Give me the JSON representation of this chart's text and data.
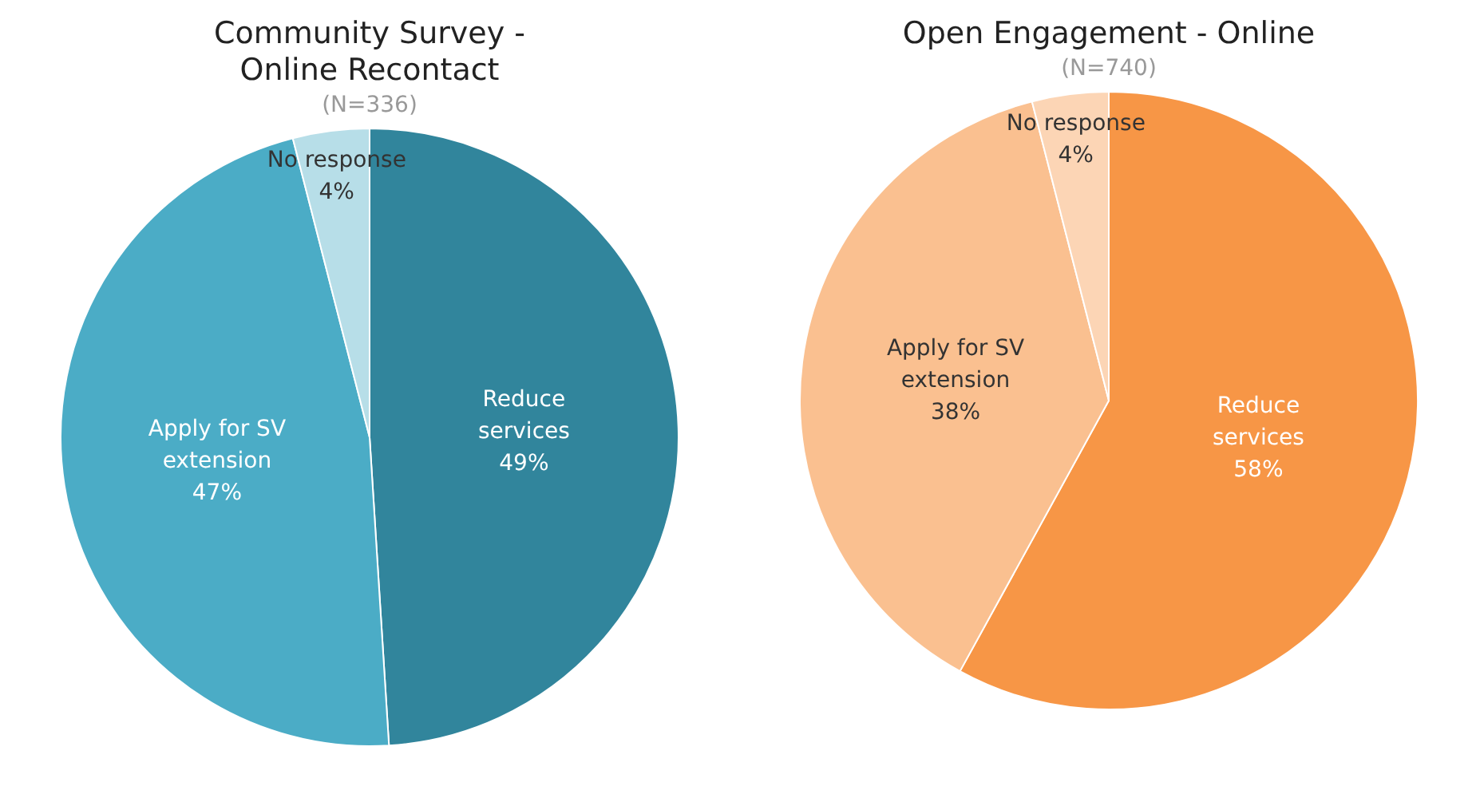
{
  "chart_data": [
    {
      "type": "pie",
      "title": "Community Survey - Online Recontact",
      "subtitle": "(N=336)",
      "categories": [
        "Reduce services",
        "Apply for SV extension",
        "No response"
      ],
      "values": [
        49,
        47,
        4
      ],
      "value_labels": [
        "49%",
        "47%",
        "4%"
      ],
      "colors": [
        "#31859c",
        "#4bacc6",
        "#b7dee8"
      ],
      "legend": false
    },
    {
      "type": "pie",
      "title": "Open Engagement - Online",
      "subtitle": "(N=740)",
      "categories": [
        "Reduce services",
        "Apply for SV extension",
        "No response"
      ],
      "values": [
        58,
        38,
        4
      ],
      "value_labels": [
        "58%",
        "38%",
        "4%"
      ],
      "colors": [
        "#f79646",
        "#fac090",
        "#fcd5b5"
      ],
      "legend": false
    }
  ]
}
